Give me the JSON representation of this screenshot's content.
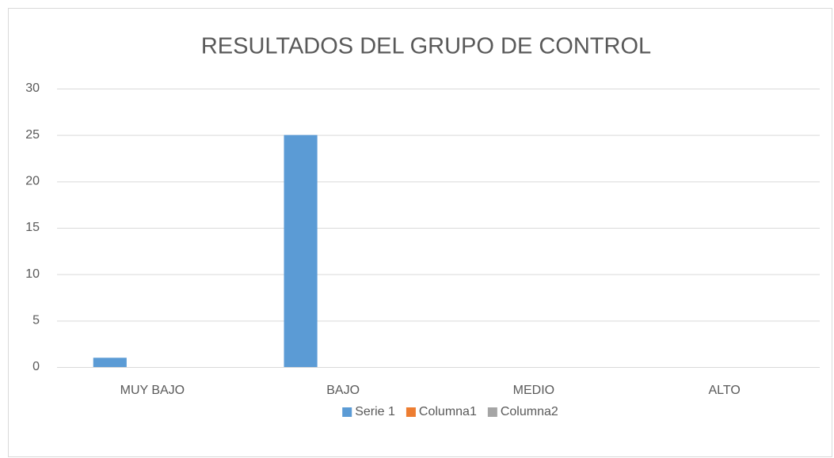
{
  "chart_data": {
    "type": "bar",
    "title": "RESULTADOS DEL GRUPO DE CONTROL",
    "categories": [
      "MUY BAJO",
      "BAJO",
      "MEDIO",
      "ALTO"
    ],
    "series": [
      {
        "name": "Serie 1",
        "color": "#5b9bd5",
        "values": [
          1,
          25,
          0,
          0
        ]
      },
      {
        "name": "Columna1",
        "color": "#ed7d31",
        "values": [
          0,
          0,
          0,
          0
        ]
      },
      {
        "name": "Columna2",
        "color": "#a5a5a5",
        "values": [
          0,
          0,
          0,
          0
        ]
      }
    ],
    "ylim": [
      0,
      30
    ],
    "yticks": [
      0,
      5,
      10,
      15,
      20,
      25,
      30
    ],
    "grid": true,
    "legend": "bottom"
  }
}
